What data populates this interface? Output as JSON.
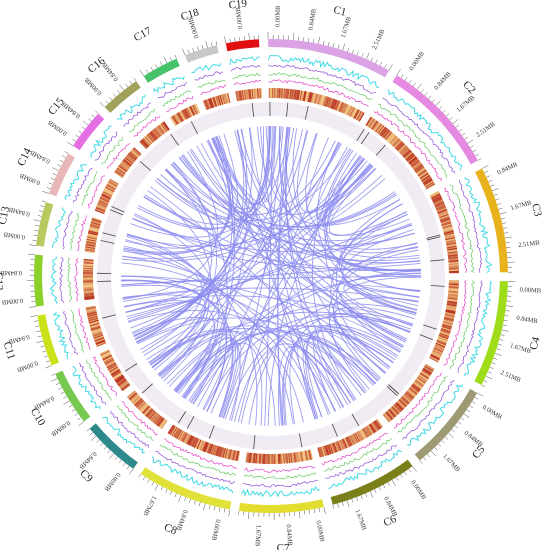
{
  "figure": {
    "chromosomes": [
      {
        "name": "C1",
        "color": "#dba3e6",
        "length": 3.4,
        "ticks": [
          "0.00MB",
          "0.84MB",
          "1.67MB",
          "2.51MB"
        ]
      },
      {
        "name": "C2",
        "color": "#e58ae0",
        "length": 3.2,
        "ticks": [
          "0.00MB",
          "0.84MB",
          "1.67MB",
          "2.51MB"
        ]
      },
      {
        "name": "C3",
        "color": "#e8b21c",
        "length": 2.9,
        "ticks": [
          "0.84MB",
          "1.67MB",
          "2.51MB"
        ]
      },
      {
        "name": "C4",
        "color": "#9fdc1a",
        "length": 2.9,
        "ticks": [
          "0.00MB",
          "0.84MB",
          "1.67MB",
          "2.51MB"
        ]
      },
      {
        "name": "C5",
        "color": "#9e9a73",
        "length": 2.4,
        "ticks": [
          "0.00MB",
          "0.84MB",
          "1.67MB"
        ]
      },
      {
        "name": "C6",
        "color": "#7a7f1a",
        "length": 2.4,
        "ticks": [
          "0.00MB",
          "0.84MB",
          "1.67MB"
        ]
      },
      {
        "name": "C7",
        "color": "#e2dd2e",
        "length": 2.3,
        "ticks": [
          "0.00MB",
          "0.84MB",
          "1.67MB"
        ]
      },
      {
        "name": "C8",
        "color": "#e0e23a",
        "length": 2.6,
        "ticks": [
          "0.00MB",
          "0.84MB",
          "1.67MB"
        ]
      },
      {
        "name": "C9",
        "color": "#2e8a8a",
        "length": 1.6,
        "ticks": [
          "0.00MB",
          "0.84MB"
        ]
      },
      {
        "name": "C10",
        "color": "#77c84f",
        "length": 1.5,
        "ticks": [
          "0.00MB",
          "0.84MB"
        ]
      },
      {
        "name": "C11",
        "color": "#c9e21a",
        "length": 1.4,
        "ticks": [
          "0.00MB",
          "0.84MB"
        ]
      },
      {
        "name": "C12",
        "color": "#8bd12a",
        "length": 1.4,
        "ticks": [
          "0.00MB",
          "0.84MB"
        ]
      },
      {
        "name": "C13",
        "color": "#b9c95f",
        "length": 1.2,
        "ticks": [
          "0.00MB",
          "0.84MB"
        ]
      },
      {
        "name": "C14",
        "color": "#e8b7b7",
        "length": 1.2,
        "ticks": [
          "0.00MB",
          "0.84MB"
        ]
      },
      {
        "name": "C15",
        "color": "#e56ee5",
        "length": 1.1,
        "ticks": [
          "0.00MB",
          "0.84MB"
        ]
      },
      {
        "name": "C16",
        "color": "#a0a15a",
        "length": 1.1,
        "ticks": [
          "0.00MB",
          "0.84MB"
        ]
      },
      {
        "name": "C17",
        "color": "#45c26a",
        "length": 1.0,
        "ticks": []
      },
      {
        "name": "C18",
        "color": "#c8c8c8",
        "length": 0.9,
        "ticks": [
          "0.00MB"
        ]
      },
      {
        "name": "C19",
        "color": "#e01010",
        "length": 0.9,
        "ticks": [
          "0.00MB"
        ]
      }
    ],
    "colors": {
      "link": "#8c8cf0",
      "heat_low": "#f9d98c",
      "heat_high": "#b5281a",
      "track_cyan": "#22d3e0",
      "track_purple": "#7a2ad0",
      "track_green": "#49c243",
      "track_magenta": "#e020c0"
    }
  }
}
